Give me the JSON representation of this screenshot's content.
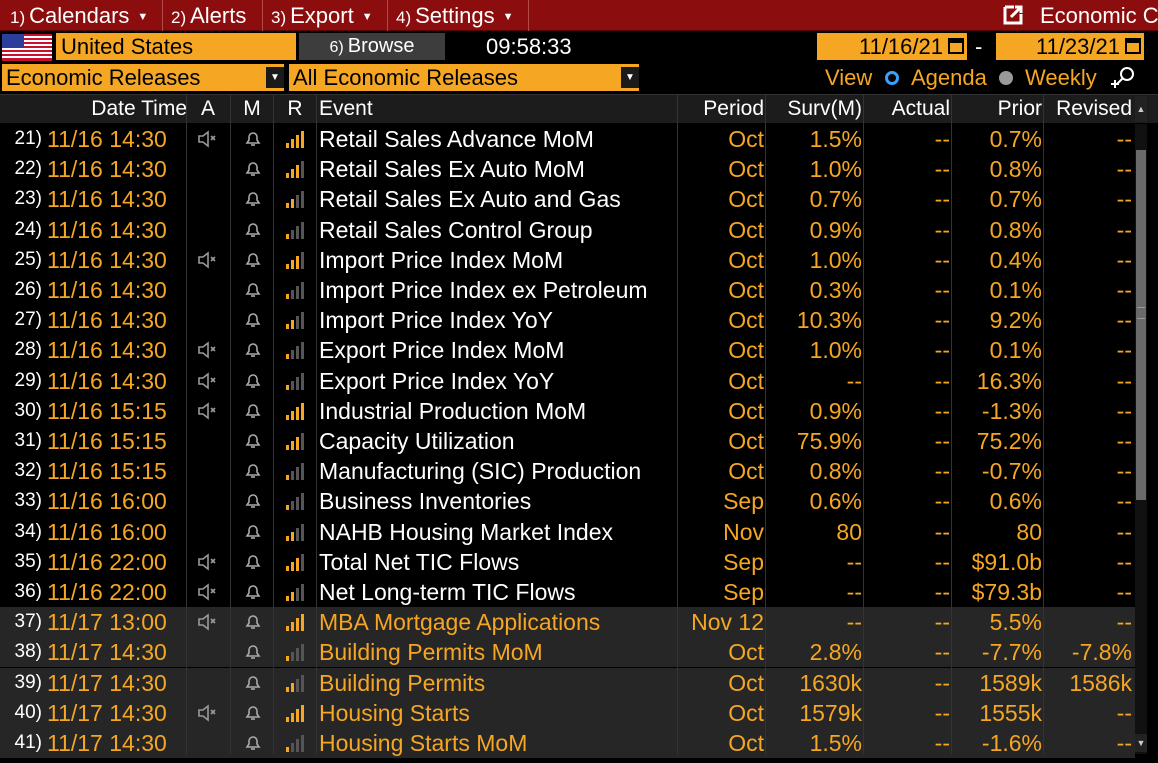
{
  "menu": {
    "items": [
      {
        "num": "1)",
        "label": "Calendars"
      },
      {
        "num": "2)",
        "label": "Alerts"
      },
      {
        "num": "3)",
        "label": "Export"
      },
      {
        "num": "4)",
        "label": "Settings"
      }
    ],
    "title": "Economic C"
  },
  "toolbar": {
    "country": "United States",
    "browse_num": "6)",
    "browse_label": "Browse",
    "clock": "09:58:33",
    "start_date": "11/16/21",
    "date_sep": "-",
    "end_date": "11/23/21"
  },
  "filters": {
    "calendar_type": "Economic Releases",
    "release_filter": "All Economic Releases",
    "view_label": "View",
    "view_options": [
      "Agenda",
      "Weekly"
    ],
    "selected_view": "Agenda"
  },
  "colors": {
    "accent": "#f5a623",
    "menubar": "#8c0d0d",
    "selected_radio": "#3aa0ff"
  },
  "columns": {
    "datetime": "Date Time",
    "a": "A",
    "m": "M",
    "r": "R",
    "event": "Event",
    "period": "Period",
    "surv": "Surv(M)",
    "actual": "Actual",
    "prior": "Prior",
    "revised": "Revised"
  },
  "rows": [
    {
      "num": "21)",
      "datetime": "11/16 14:30",
      "alert": "speaker-icon",
      "relevance": 4,
      "event": "Retail Sales Advance MoM",
      "period": "Oct",
      "surv": "1.5%",
      "actual": "--",
      "prior": "0.7%",
      "revised": "--",
      "highlight": false
    },
    {
      "num": "22)",
      "datetime": "11/16 14:30",
      "alert": "",
      "relevance": 3,
      "event": "Retail Sales Ex Auto MoM",
      "period": "Oct",
      "surv": "1.0%",
      "actual": "--",
      "prior": "0.8%",
      "revised": "--",
      "highlight": false
    },
    {
      "num": "23)",
      "datetime": "11/16 14:30",
      "alert": "",
      "relevance": 2,
      "event": "Retail Sales Ex Auto and Gas",
      "period": "Oct",
      "surv": "0.7%",
      "actual": "--",
      "prior": "0.7%",
      "revised": "--",
      "highlight": false
    },
    {
      "num": "24)",
      "datetime": "11/16 14:30",
      "alert": "",
      "relevance": 1,
      "event": "Retail Sales Control Group",
      "period": "Oct",
      "surv": "0.9%",
      "actual": "--",
      "prior": "0.8%",
      "revised": "--",
      "highlight": false
    },
    {
      "num": "25)",
      "datetime": "11/16 14:30",
      "alert": "speaker-icon",
      "relevance": 3,
      "event": "Import Price Index MoM",
      "period": "Oct",
      "surv": "1.0%",
      "actual": "--",
      "prior": "0.4%",
      "revised": "--",
      "highlight": false
    },
    {
      "num": "26)",
      "datetime": "11/16 14:30",
      "alert": "",
      "relevance": 1,
      "event": "Import Price Index ex Petroleum",
      "period": "Oct",
      "surv": "0.3%",
      "actual": "--",
      "prior": "0.1%",
      "revised": "--",
      "highlight": false
    },
    {
      "num": "27)",
      "datetime": "11/16 14:30",
      "alert": "",
      "relevance": 2,
      "event": "Import Price Index YoY",
      "period": "Oct",
      "surv": "10.3%",
      "actual": "--",
      "prior": "9.2%",
      "revised": "--",
      "highlight": false
    },
    {
      "num": "28)",
      "datetime": "11/16 14:30",
      "alert": "speaker-icon",
      "relevance": 1,
      "event": "Export Price Index MoM",
      "period": "Oct",
      "surv": "1.0%",
      "actual": "--",
      "prior": "0.1%",
      "revised": "--",
      "highlight": false
    },
    {
      "num": "29)",
      "datetime": "11/16 14:30",
      "alert": "speaker-icon",
      "relevance": 1,
      "event": "Export Price Index YoY",
      "period": "Oct",
      "surv": "--",
      "actual": "--",
      "prior": "16.3%",
      "revised": "--",
      "highlight": false
    },
    {
      "num": "30)",
      "datetime": "11/16 15:15",
      "alert": "speaker-icon",
      "relevance": 4,
      "event": "Industrial Production MoM",
      "period": "Oct",
      "surv": "0.9%",
      "actual": "--",
      "prior": "-1.3%",
      "revised": "--",
      "highlight": false
    },
    {
      "num": "31)",
      "datetime": "11/16 15:15",
      "alert": "",
      "relevance": 3,
      "event": "Capacity Utilization",
      "period": "Oct",
      "surv": "75.9%",
      "actual": "--",
      "prior": "75.2%",
      "revised": "--",
      "highlight": false
    },
    {
      "num": "32)",
      "datetime": "11/16 15:15",
      "alert": "",
      "relevance": 1,
      "event": "Manufacturing (SIC) Production",
      "period": "Oct",
      "surv": "0.8%",
      "actual": "--",
      "prior": "-0.7%",
      "revised": "--",
      "highlight": false
    },
    {
      "num": "33)",
      "datetime": "11/16 16:00",
      "alert": "",
      "relevance": 1,
      "event": "Business Inventories",
      "period": "Sep",
      "surv": "0.6%",
      "actual": "--",
      "prior": "0.6%",
      "revised": "--",
      "highlight": false
    },
    {
      "num": "34)",
      "datetime": "11/16 16:00",
      "alert": "",
      "relevance": 2,
      "event": "NAHB Housing Market Index",
      "period": "Nov",
      "surv": "80",
      "actual": "--",
      "prior": "80",
      "revised": "--",
      "highlight": false
    },
    {
      "num": "35)",
      "datetime": "11/16 22:00",
      "alert": "speaker-icon",
      "relevance": 3,
      "event": "Total Net TIC Flows",
      "period": "Sep",
      "surv": "--",
      "actual": "--",
      "prior": "$91.0b",
      "revised": "--",
      "highlight": false
    },
    {
      "num": "36)",
      "datetime": "11/16 22:00",
      "alert": "speaker-icon",
      "relevance": 2,
      "event": "Net Long-term TIC Flows",
      "period": "Sep",
      "surv": "--",
      "actual": "--",
      "prior": "$79.3b",
      "revised": "--",
      "highlight": false
    },
    {
      "num": "37)",
      "datetime": "11/17 13:00",
      "alert": "speaker-icon",
      "relevance": 4,
      "event": "MBA Mortgage Applications",
      "period": "Nov 12",
      "surv": "--",
      "actual": "--",
      "prior": "5.5%",
      "revised": "--",
      "highlight": true
    },
    {
      "num": "38)",
      "datetime": "11/17 14:30",
      "alert": "",
      "relevance": 1,
      "event": "Building Permits MoM",
      "period": "Oct",
      "surv": "2.8%",
      "actual": "--",
      "prior": "-7.7%",
      "revised": "-7.8%",
      "highlight": true
    },
    {
      "num": "39)",
      "datetime": "11/17 14:30",
      "alert": "",
      "relevance": 2,
      "event": "Building Permits",
      "period": "Oct",
      "surv": "1630k",
      "actual": "--",
      "prior": "1589k",
      "revised": "1586k",
      "highlight": true
    },
    {
      "num": "40)",
      "datetime": "11/17 14:30",
      "alert": "speaker-icon",
      "relevance": 4,
      "event": "Housing Starts",
      "period": "Oct",
      "surv": "1579k",
      "actual": "--",
      "prior": "1555k",
      "revised": "--",
      "highlight": true
    },
    {
      "num": "41)",
      "datetime": "11/17 14:30",
      "alert": "",
      "relevance": 1,
      "event": "Housing Starts MoM",
      "period": "Oct",
      "surv": "1.5%",
      "actual": "--",
      "prior": "-1.6%",
      "revised": "--",
      "highlight": true
    }
  ]
}
